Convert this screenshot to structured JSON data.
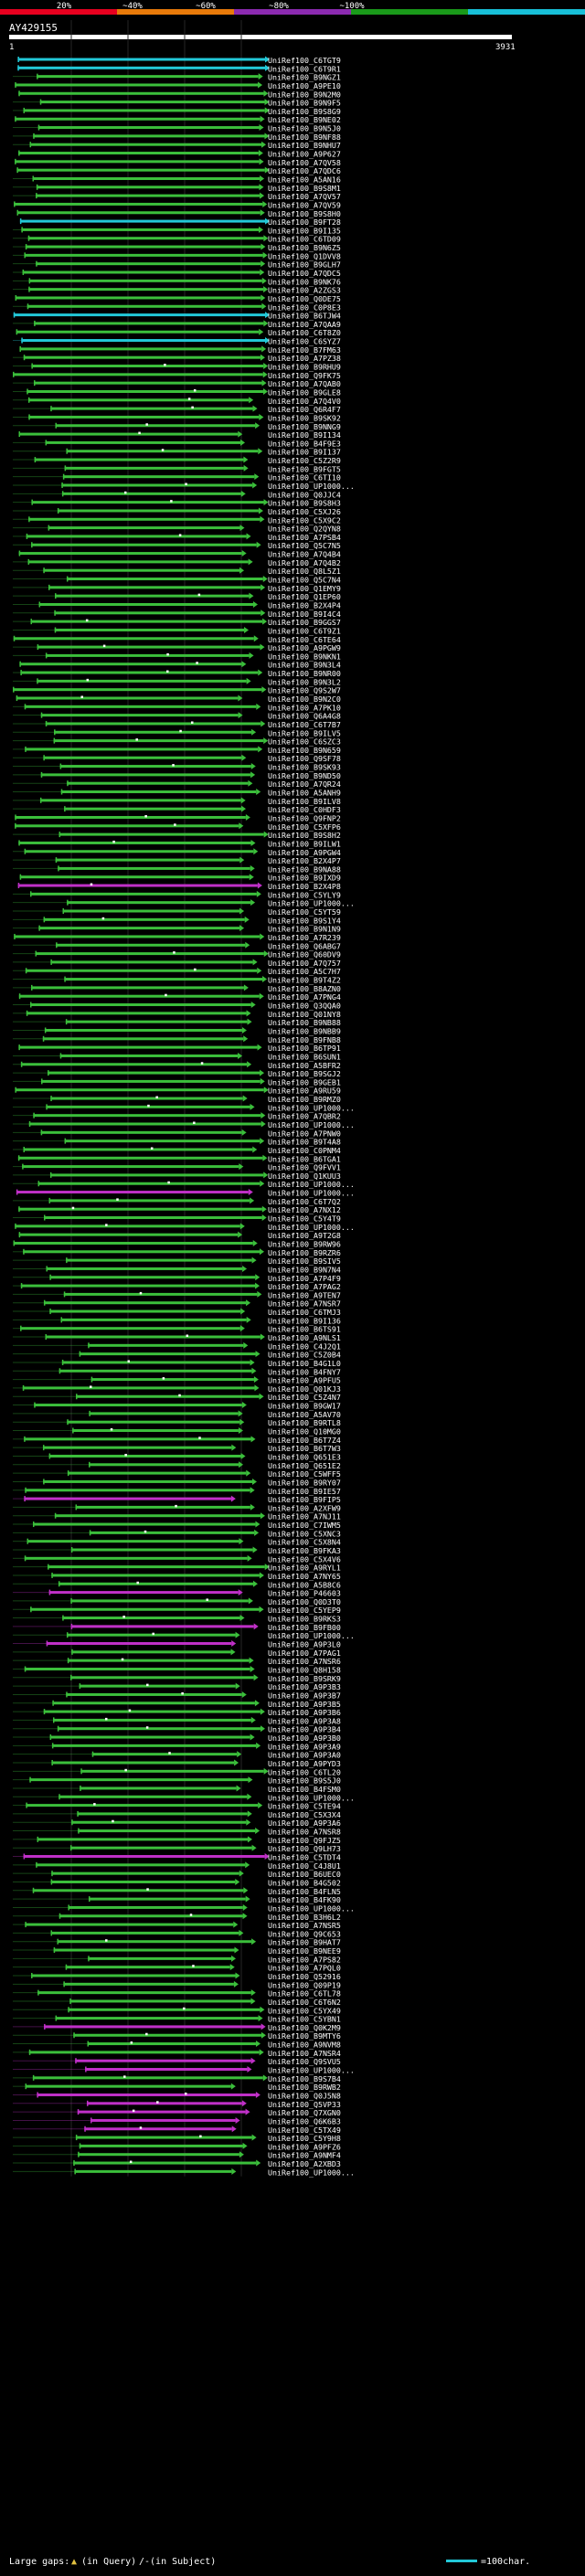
{
  "scale_labels": [
    "20%",
    "~40%",
    "~60%",
    "~80%",
    "~100%"
  ],
  "scale_colors": [
    "#e8001f",
    "#e87a0a",
    "#8b2ab0",
    "#1a9a1a",
    "#18c0d8"
  ],
  "query_id": "AY429155",
  "ruler": {
    "start": "1",
    "end": "3931"
  },
  "hits": [
    {
      "id": "UniRef100_C6TGT9",
      "color": "cyan"
    },
    {
      "id": "UniRef100_C6T9R1",
      "color": "cyan"
    },
    {
      "id": "UniRef100_B9NGZ1",
      "color": "green"
    },
    {
      "id": "UniRef100_A9PE10",
      "color": "green"
    },
    {
      "id": "UniRef100_B9N2M0",
      "color": "green"
    },
    {
      "id": "UniRef100_B9N9F5",
      "color": "green"
    },
    {
      "id": "UniRef100_B9S8G9",
      "color": "green"
    },
    {
      "id": "UniRef100_B9NE02",
      "color": "green"
    },
    {
      "id": "UniRef100_B9N5J0",
      "color": "green"
    },
    {
      "id": "UniRef100_B9NF88",
      "color": "green"
    },
    {
      "id": "UniRef100_B9NHU7",
      "color": "green"
    },
    {
      "id": "UniRef100_A9P627",
      "color": "green"
    },
    {
      "id": "UniRef100_A7QV58",
      "color": "green"
    },
    {
      "id": "UniRef100_A7QDC6",
      "color": "green"
    },
    {
      "id": "UniRef100_A5AN16",
      "color": "green"
    },
    {
      "id": "UniRef100_B9S8M1",
      "color": "green"
    },
    {
      "id": "UniRef100_A7QV57",
      "color": "green"
    },
    {
      "id": "UniRef100_A7QV59",
      "color": "green"
    },
    {
      "id": "UniRef100_B9S8H0",
      "color": "green"
    },
    {
      "id": "UniRef100_B9FT28",
      "color": "cyan"
    },
    {
      "id": "UniRef100_B9I135",
      "color": "green"
    },
    {
      "id": "UniRef100_C6TD09",
      "color": "green"
    },
    {
      "id": "UniRef100_B9N6Z5",
      "color": "green"
    },
    {
      "id": "UniRef100_Q1DVV8",
      "color": "green"
    },
    {
      "id": "UniRef100_B9GLH7",
      "color": "green"
    },
    {
      "id": "UniRef100_A7QDC5",
      "color": "green"
    },
    {
      "id": "UniRef100_B9NK76",
      "color": "green"
    },
    {
      "id": "UniRef100_A2ZGS3",
      "color": "green"
    },
    {
      "id": "UniRef100_Q0DE75",
      "color": "green"
    },
    {
      "id": "UniRef100_C0P8E3",
      "color": "green"
    },
    {
      "id": "UniRef100_B6TJW4",
      "color": "cyan"
    },
    {
      "id": "UniRef100_A7QAA9",
      "color": "green"
    },
    {
      "id": "UniRef100_C6T8Z0",
      "color": "green"
    },
    {
      "id": "UniRef100_C6SYZ7",
      "color": "cyan"
    },
    {
      "id": "UniRef100_B7FM63",
      "color": "green"
    },
    {
      "id": "UniRef100_A7PZ38",
      "color": "green"
    },
    {
      "id": "UniRef100_B9RHU9",
      "color": "green"
    },
    {
      "id": "UniRef100_Q9FK75",
      "color": "green"
    },
    {
      "id": "UniRef100_A7QAB0",
      "color": "green"
    },
    {
      "id": "UniRef100_B9GLE8",
      "color": "green"
    },
    {
      "id": "UniRef100_A7Q4V0",
      "color": "green"
    },
    {
      "id": "UniRef100_Q6R4F7",
      "color": "green"
    },
    {
      "id": "UniRef100_B9SK92",
      "color": "green"
    },
    {
      "id": "UniRef100_B9NNG9",
      "color": "green"
    },
    {
      "id": "UniRef100_B9I134",
      "color": "green"
    },
    {
      "id": "UniRef100_B4F9E3",
      "color": "green"
    },
    {
      "id": "UniRef100_B9I137",
      "color": "green"
    },
    {
      "id": "UniRef100_C5Z2R9",
      "color": "green"
    },
    {
      "id": "UniRef100_B9FGT5",
      "color": "green"
    },
    {
      "id": "UniRef100_C6TI10",
      "color": "green"
    },
    {
      "id": "UniRef100_UP1000...",
      "color": "green"
    },
    {
      "id": "UniRef100_Q0JJC4",
      "color": "green"
    },
    {
      "id": "UniRef100_B9S8H3",
      "color": "green"
    },
    {
      "id": "UniRef100_C5XJ26",
      "color": "green"
    },
    {
      "id": "UniRef100_C5X9C2",
      "color": "green"
    },
    {
      "id": "UniRef100_Q2QYN8",
      "color": "green"
    },
    {
      "id": "UniRef100_A7PSB4",
      "color": "green"
    },
    {
      "id": "UniRef100_Q5C7N5",
      "color": "green"
    },
    {
      "id": "UniRef100_A7Q4B4",
      "color": "green"
    },
    {
      "id": "UniRef100_A7Q4B2",
      "color": "green"
    },
    {
      "id": "UniRef100_Q8L5Z1",
      "color": "green"
    },
    {
      "id": "UniRef100_Q5C7N4",
      "color": "green"
    },
    {
      "id": "UniRef100_Q1EMY9",
      "color": "green"
    },
    {
      "id": "UniRef100_Q1EP60",
      "color": "green"
    },
    {
      "id": "UniRef100_B2X4P4",
      "color": "green"
    },
    {
      "id": "UniRef100_B9I4C4",
      "color": "green"
    },
    {
      "id": "UniRef100_B9GGS7",
      "color": "green"
    },
    {
      "id": "UniRef100_C6T9Z1",
      "color": "green"
    },
    {
      "id": "UniRef100_C6TE64",
      "color": "green"
    },
    {
      "id": "UniRef100_A9PGW9",
      "color": "green"
    },
    {
      "id": "UniRef100_B9NKN1",
      "color": "green"
    },
    {
      "id": "UniRef100_B9N3L4",
      "color": "green"
    },
    {
      "id": "UniRef100_B9NR00",
      "color": "green"
    },
    {
      "id": "UniRef100_B9N3L2",
      "color": "green"
    },
    {
      "id": "UniRef100_Q9S2W7",
      "color": "green"
    },
    {
      "id": "UniRef100_B9N2C0",
      "color": "green"
    },
    {
      "id": "UniRef100_A7PK10",
      "color": "green"
    },
    {
      "id": "UniRef100_Q6A4G8",
      "color": "green"
    },
    {
      "id": "UniRef100_C6T7B7",
      "color": "green"
    },
    {
      "id": "UniRef100_B9ILV5",
      "color": "green"
    },
    {
      "id": "UniRef100_C6SZC3",
      "color": "green"
    },
    {
      "id": "UniRef100_B9N659",
      "color": "green"
    },
    {
      "id": "UniRef100_Q9SF78",
      "color": "green"
    },
    {
      "id": "UniRef100_B9SK93",
      "color": "green"
    },
    {
      "id": "UniRef100_B9ND50",
      "color": "green"
    },
    {
      "id": "UniRef100_A7QR24",
      "color": "green"
    },
    {
      "id": "UniRef100_A5ANH9",
      "color": "green"
    },
    {
      "id": "UniRef100_B9ILV8",
      "color": "green"
    },
    {
      "id": "UniRef100_C0HDF3",
      "color": "green"
    },
    {
      "id": "UniRef100_Q9FNP2",
      "color": "green"
    },
    {
      "id": "UniRef100_C5XFP6",
      "color": "green"
    },
    {
      "id": "UniRef100_B9S8H2",
      "color": "green"
    },
    {
      "id": "UniRef100_B9ILW1",
      "color": "green"
    },
    {
      "id": "UniRef100_A9PGW4",
      "color": "green"
    },
    {
      "id": "UniRef100_B2X4P7",
      "color": "green"
    },
    {
      "id": "UniRef100_B9NA88",
      "color": "green"
    },
    {
      "id": "UniRef100_B9IXD9",
      "color": "green"
    },
    {
      "id": "UniRef100_B2X4P8",
      "color": "magenta"
    },
    {
      "id": "UniRef100_C5YLY9",
      "color": "green"
    },
    {
      "id": "UniRef100_UP1000...",
      "color": "green"
    },
    {
      "id": "UniRef100_C5YT59",
      "color": "green"
    },
    {
      "id": "UniRef100_B9S1Y4",
      "color": "green"
    },
    {
      "id": "UniRef100_B9N1N9",
      "color": "green"
    },
    {
      "id": "UniRef100_A7R239",
      "color": "green"
    },
    {
      "id": "UniRef100_Q6ABG7",
      "color": "green"
    },
    {
      "id": "UniRef100_Q60DV9",
      "color": "green"
    },
    {
      "id": "UniRef100_A7Q757",
      "color": "green"
    },
    {
      "id": "UniRef100_A5C7H7",
      "color": "green"
    },
    {
      "id": "UniRef100_B9T4Z2",
      "color": "green"
    },
    {
      "id": "UniRef100_B8AZN0",
      "color": "green"
    },
    {
      "id": "UniRef100_A7PNG4",
      "color": "green"
    },
    {
      "id": "UniRef100_Q3QQA0",
      "color": "green"
    },
    {
      "id": "UniRef100_Q01NY8",
      "color": "green"
    },
    {
      "id": "UniRef100_B9NB88",
      "color": "green"
    },
    {
      "id": "UniRef100_B9NBB9",
      "color": "green"
    },
    {
      "id": "UniRef100_B9FNB8",
      "color": "green"
    },
    {
      "id": "UniRef100_B6TP91",
      "color": "green"
    },
    {
      "id": "UniRef100_B6SUN1",
      "color": "green"
    },
    {
      "id": "UniRef100_A5BFR2",
      "color": "green"
    },
    {
      "id": "UniRef100_B9SGJ2",
      "color": "green"
    },
    {
      "id": "UniRef100_B9GEB1",
      "color": "green"
    },
    {
      "id": "UniRef100_A9RU59",
      "color": "green"
    },
    {
      "id": "UniRef100_B9RMZ0",
      "color": "green"
    },
    {
      "id": "UniRef100_UP1000...",
      "color": "green"
    },
    {
      "id": "UniRef100_A7QBR2",
      "color": "green"
    },
    {
      "id": "UniRef100_UP1000...",
      "color": "green"
    },
    {
      "id": "UniRef100_A7PNW0",
      "color": "green"
    },
    {
      "id": "UniRef100_B9T4A8",
      "color": "green"
    },
    {
      "id": "UniRef100_C0PNM4",
      "color": "green"
    },
    {
      "id": "UniRef100_B6TGA1",
      "color": "green"
    },
    {
      "id": "UniRef100_Q9FVV1",
      "color": "green"
    },
    {
      "id": "UniRef100_Q1KUU3",
      "color": "green"
    },
    {
      "id": "UniRef100_UP1000...",
      "color": "green"
    },
    {
      "id": "UniRef100_UP1000...",
      "color": "magenta"
    },
    {
      "id": "UniRef100_C6T7Q2",
      "color": "green"
    },
    {
      "id": "UniRef100_A7NX12",
      "color": "green"
    },
    {
      "id": "UniRef100_C5Y4T9",
      "color": "green"
    },
    {
      "id": "UniRef100_UP1000...",
      "color": "green"
    },
    {
      "id": "UniRef100_A9T2G8",
      "color": "green"
    },
    {
      "id": "UniRef100_B9RW96",
      "color": "green"
    },
    {
      "id": "UniRef100_B9RZR6",
      "color": "green"
    },
    {
      "id": "UniRef100_B9SIV5",
      "color": "green"
    },
    {
      "id": "UniRef100_B9N7N4",
      "color": "green"
    },
    {
      "id": "UniRef100_A7P4F9",
      "color": "green"
    },
    {
      "id": "UniRef100_A7PAG2",
      "color": "green"
    },
    {
      "id": "UniRef100_A9TEN7",
      "color": "green"
    },
    {
      "id": "UniRef100_A7NSR7",
      "color": "green"
    },
    {
      "id": "UniRef100_C6TMJ3",
      "color": "green"
    },
    {
      "id": "UniRef100_B9I136",
      "color": "green"
    },
    {
      "id": "UniRef100_B6TS91",
      "color": "green"
    },
    {
      "id": "UniRef100_A9NLS1",
      "color": "green"
    },
    {
      "id": "UniRef100_C4J2Q1",
      "color": "green"
    },
    {
      "id": "UniRef100_C5Z0B4",
      "color": "green"
    },
    {
      "id": "UniRef100_B4G1L0",
      "color": "green"
    },
    {
      "id": "UniRef100_B4FNY7",
      "color": "green"
    },
    {
      "id": "UniRef100_A9PFU5",
      "color": "green"
    },
    {
      "id": "UniRef100_Q01KJ3",
      "color": "green"
    },
    {
      "id": "UniRef100_C5Z4N7",
      "color": "green"
    },
    {
      "id": "UniRef100_B9GW17",
      "color": "green"
    },
    {
      "id": "UniRef100_A5AV70",
      "color": "green"
    },
    {
      "id": "UniRef100_B9RTL8",
      "color": "green"
    },
    {
      "id": "UniRef100_Q10MG0",
      "color": "green"
    },
    {
      "id": "UniRef100_B6T7Z4",
      "color": "green"
    },
    {
      "id": "UniRef100_B6T7W3",
      "color": "green"
    },
    {
      "id": "UniRef100_Q651E3",
      "color": "green"
    },
    {
      "id": "UniRef100_Q651E2",
      "color": "green"
    },
    {
      "id": "UniRef100_C5WFF5",
      "color": "green"
    },
    {
      "id": "UniRef100_B9RY07",
      "color": "green"
    },
    {
      "id": "UniRef100_B9IE57",
      "color": "green"
    },
    {
      "id": "UniRef100_B9FIP5",
      "color": "magenta"
    },
    {
      "id": "UniRef100_A2XFW9",
      "color": "green"
    },
    {
      "id": "UniRef100_A7NJ11",
      "color": "green"
    },
    {
      "id": "UniRef100_C7IWM5",
      "color": "green"
    },
    {
      "id": "UniRef100_C5XNC3",
      "color": "green"
    },
    {
      "id": "UniRef100_C5X8N4",
      "color": "green"
    },
    {
      "id": "UniRef100_B9FKA3",
      "color": "green"
    },
    {
      "id": "UniRef100_C5X4V6",
      "color": "green"
    },
    {
      "id": "UniRef100_A9RYL1",
      "color": "green"
    },
    {
      "id": "UniRef100_A7NY65",
      "color": "green"
    },
    {
      "id": "UniRef100_A5B8C6",
      "color": "green"
    },
    {
      "id": "UniRef100_P46603",
      "color": "magenta"
    },
    {
      "id": "UniRef100_Q0D3T0",
      "color": "green"
    },
    {
      "id": "UniRef100_C5YEP9",
      "color": "green"
    },
    {
      "id": "UniRef100_B9RKS3",
      "color": "green"
    },
    {
      "id": "UniRef100_B9FB00",
      "color": "magenta"
    },
    {
      "id": "UniRef100_UP1000...",
      "color": "green"
    },
    {
      "id": "UniRef100_A9P3L0",
      "color": "magenta"
    },
    {
      "id": "UniRef100_A7PAG1",
      "color": "green"
    },
    {
      "id": "UniRef100_A7NSR6",
      "color": "green"
    },
    {
      "id": "UniRef100_Q8H158",
      "color": "green"
    },
    {
      "id": "UniRef100_B9SRK9",
      "color": "green"
    },
    {
      "id": "UniRef100_A9P3B3",
      "color": "green"
    },
    {
      "id": "UniRef100_A9P3B7",
      "color": "green"
    },
    {
      "id": "UniRef100_A9P3B5",
      "color": "green"
    },
    {
      "id": "UniRef100_A9P3B6",
      "color": "green"
    },
    {
      "id": "UniRef100_A9P3A8",
      "color": "green"
    },
    {
      "id": "UniRef100_A9P3B4",
      "color": "green"
    },
    {
      "id": "UniRef100_A9P3B0",
      "color": "green"
    },
    {
      "id": "UniRef100_A9P3A9",
      "color": "green"
    },
    {
      "id": "UniRef100_A9P3A0",
      "color": "green"
    },
    {
      "id": "UniRef100_A9PYD3",
      "color": "green"
    },
    {
      "id": "UniRef100_C6TL20",
      "color": "green"
    },
    {
      "id": "UniRef100_B9S5J0",
      "color": "green"
    },
    {
      "id": "UniRef100_B4FSM0",
      "color": "green"
    },
    {
      "id": "UniRef100_UP1000...",
      "color": "green"
    },
    {
      "id": "UniRef100_C5TE94",
      "color": "green"
    },
    {
      "id": "UniRef100_C5X3X4",
      "color": "green"
    },
    {
      "id": "UniRef100_A9P3A6",
      "color": "green"
    },
    {
      "id": "UniRef100_A7NSR8",
      "color": "green"
    },
    {
      "id": "UniRef100_Q9FJZ5",
      "color": "green"
    },
    {
      "id": "UniRef100_Q9LH73",
      "color": "green"
    },
    {
      "id": "UniRef100_C5TDT4",
      "color": "magenta"
    },
    {
      "id": "UniRef100_C4J8U1",
      "color": "green"
    },
    {
      "id": "UniRef100_B6UEC0",
      "color": "green"
    },
    {
      "id": "UniRef100_B4G502",
      "color": "green"
    },
    {
      "id": "UniRef100_B4FLN5",
      "color": "green"
    },
    {
      "id": "UniRef100_B4FK90",
      "color": "green"
    },
    {
      "id": "UniRef100_UP1000...",
      "color": "green"
    },
    {
      "id": "UniRef100_B3H6L2",
      "color": "green"
    },
    {
      "id": "UniRef100_A7NSR5",
      "color": "green"
    },
    {
      "id": "UniRef100_Q9C653",
      "color": "green"
    },
    {
      "id": "UniRef100_B9HAT7",
      "color": "green"
    },
    {
      "id": "UniRef100_B9NEE9",
      "color": "green"
    },
    {
      "id": "UniRef100_A7PS82",
      "color": "green"
    },
    {
      "id": "UniRef100_A7PQL0",
      "color": "green"
    },
    {
      "id": "UniRef100_Q52916",
      "color": "green"
    },
    {
      "id": "UniRef100_Q09P19",
      "color": "green"
    },
    {
      "id": "UniRef100_C6TL78",
      "color": "green"
    },
    {
      "id": "UniRef100_C6T6N2",
      "color": "green"
    },
    {
      "id": "UniRef100_C5YX49",
      "color": "green"
    },
    {
      "id": "UniRef100_C5YBN1",
      "color": "green"
    },
    {
      "id": "UniRef100_Q0K2M9",
      "color": "magenta"
    },
    {
      "id": "UniRef100_B9MTY6",
      "color": "green"
    },
    {
      "id": "UniRef100_A9NVM8",
      "color": "green"
    },
    {
      "id": "UniRef100_A7NSR4",
      "color": "green"
    },
    {
      "id": "UniRef100_Q9SVU5",
      "color": "magenta"
    },
    {
      "id": "UniRef100_UP1000...",
      "color": "magenta"
    },
    {
      "id": "UniRef100_B9S7B4",
      "color": "green"
    },
    {
      "id": "UniRef100_B9RWB2",
      "color": "green"
    },
    {
      "id": "UniRef100_Q0J5N8",
      "color": "magenta"
    },
    {
      "id": "UniRef100_Q5VP33",
      "color": "magenta"
    },
    {
      "id": "UniRef100_Q7XGN0",
      "color": "magenta"
    },
    {
      "id": "UniRef100_Q6K6B3",
      "color": "magenta"
    },
    {
      "id": "UniRef100_C5TX49",
      "color": "magenta"
    },
    {
      "id": "UniRef100_C5Y9H8",
      "color": "green"
    },
    {
      "id": "UniRef100_A9PFZ6",
      "color": "green"
    },
    {
      "id": "UniRef100_A9NMF4",
      "color": "green"
    },
    {
      "id": "UniRef100_A2XBD3",
      "color": "green"
    },
    {
      "id": "UniRef100_UP1000...",
      "color": "green"
    }
  ],
  "footer": {
    "large_gaps": "Large gaps:",
    "gap_in_query": "(in Query)",
    "gap_in_subject": "/-(in Subject)",
    "scale_note": "=100char."
  },
  "colors": {
    "green": "#3bbf3b",
    "cyan": "#22c8d8",
    "magenta": "#c030c8",
    "gap_marker": "#e0c040"
  }
}
